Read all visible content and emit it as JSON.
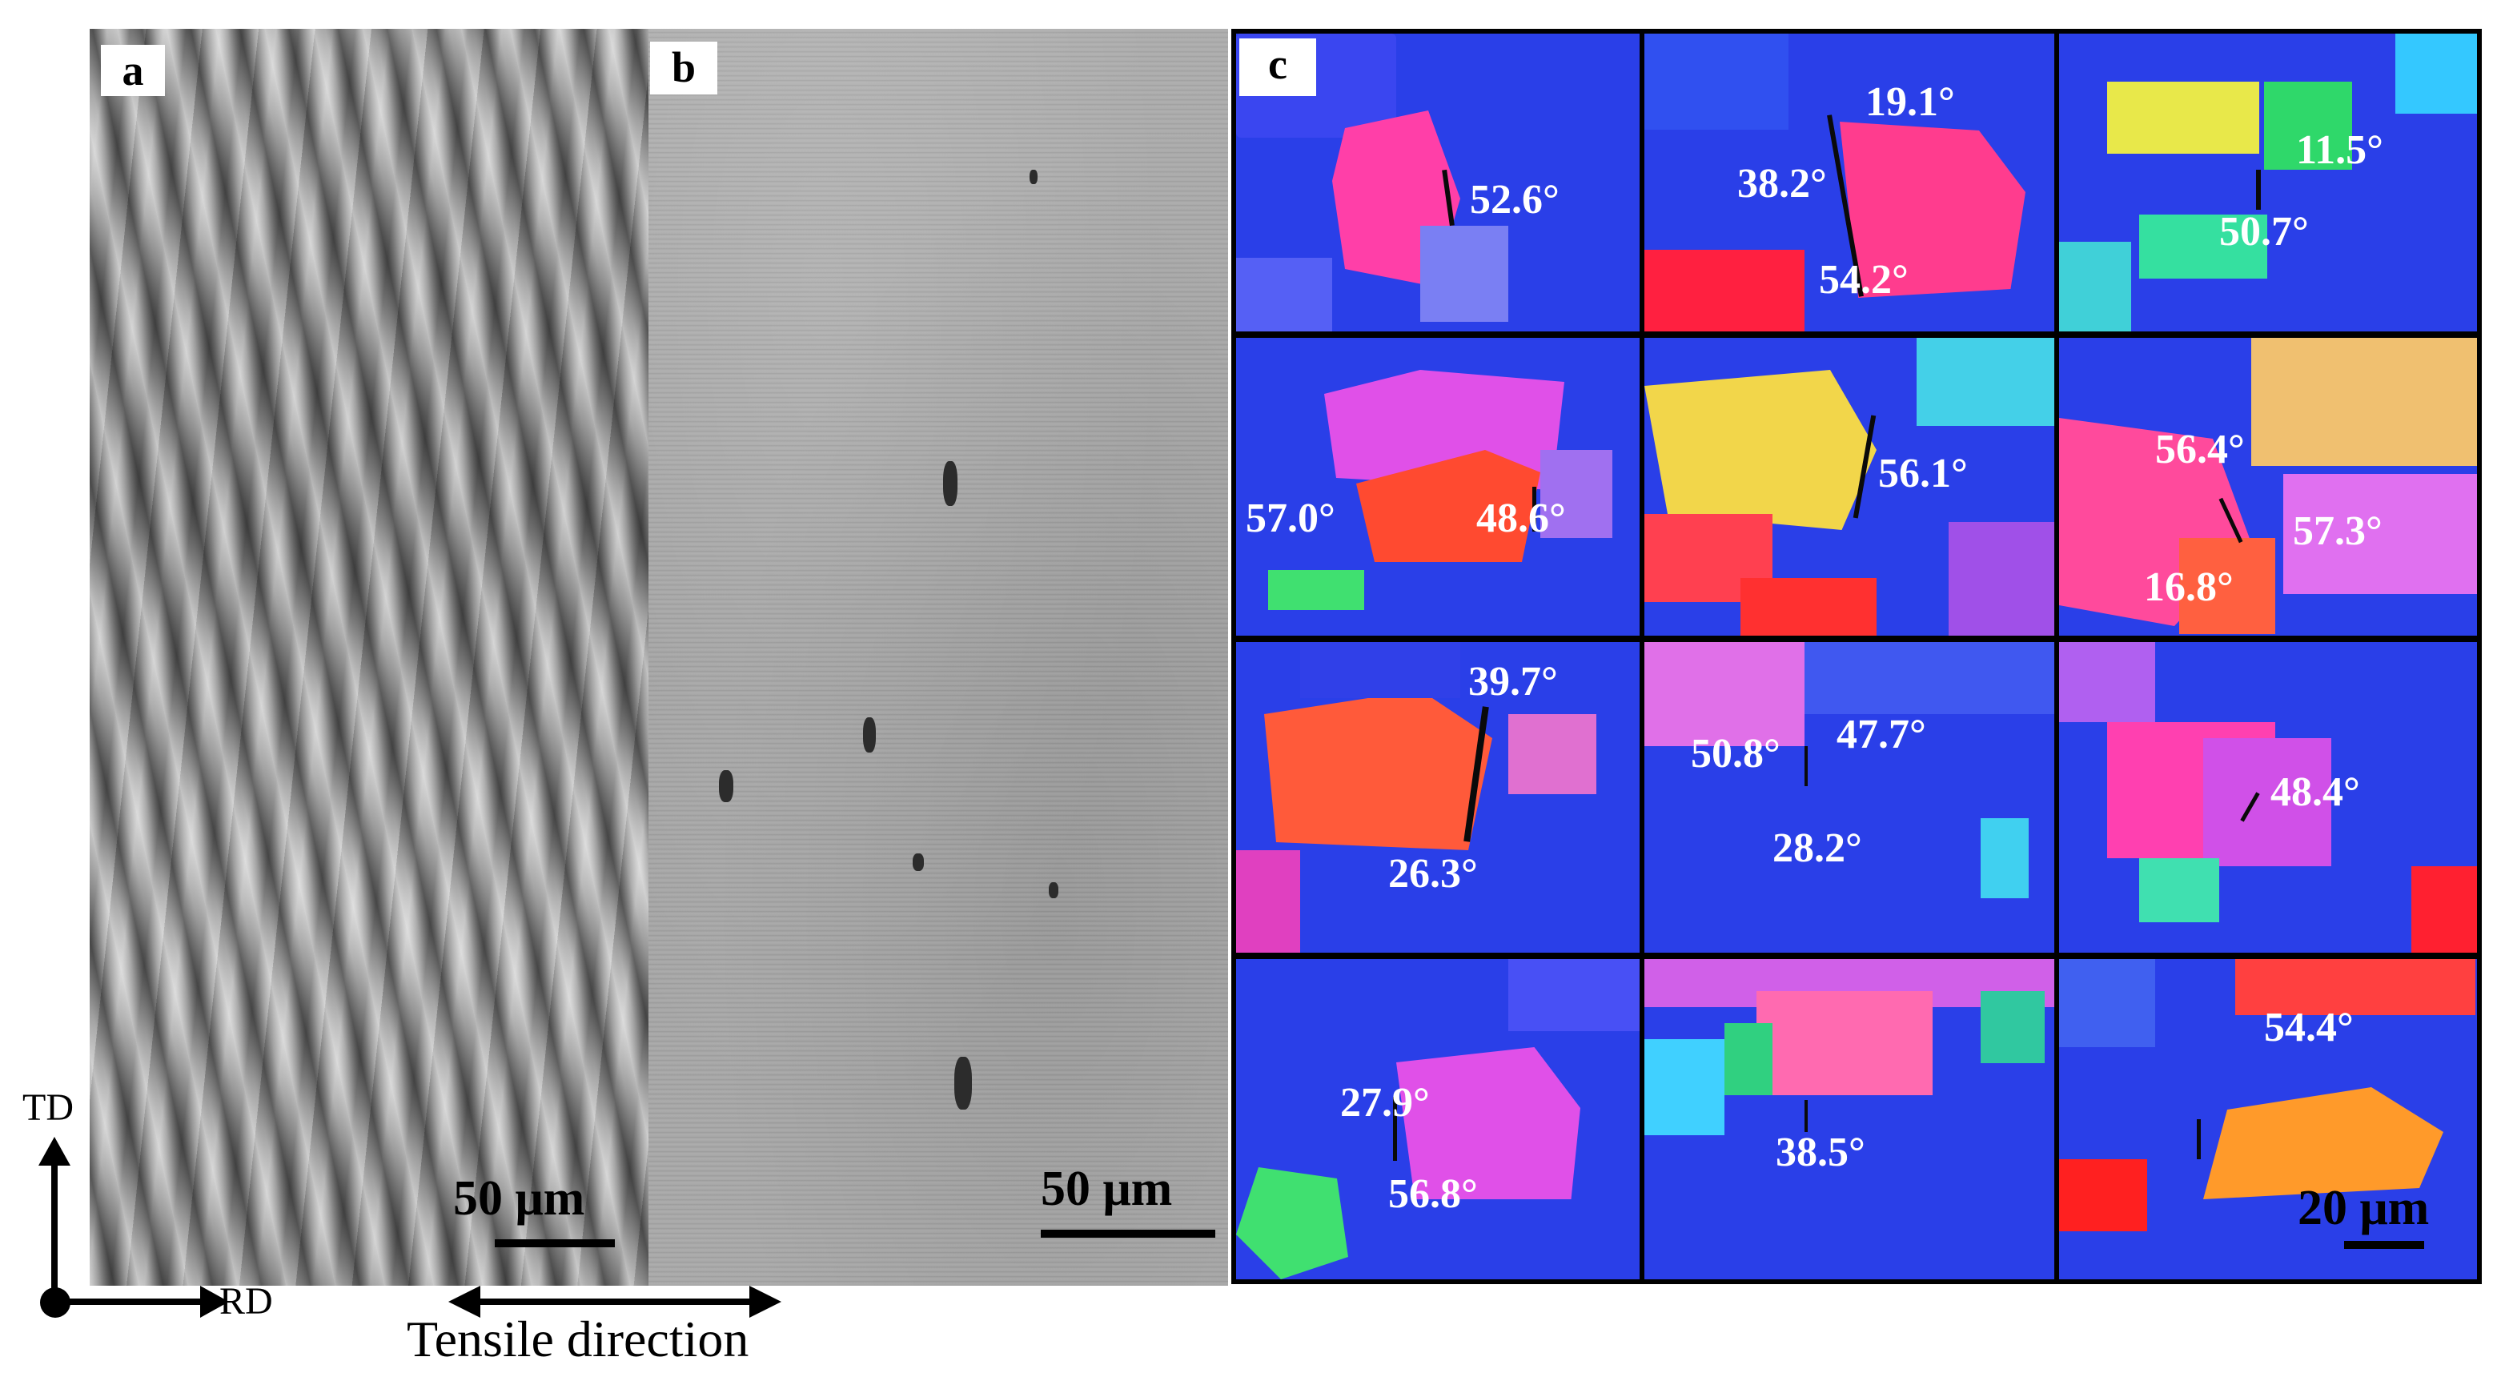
{
  "figure": {
    "panel_letters": {
      "a": "a",
      "b": "b",
      "c": "c"
    },
    "scale_bars": {
      "a": "50 μm",
      "b": "50 μm",
      "c": "20 μm"
    },
    "axes": {
      "vertical": "TD",
      "horizontal": "RD"
    },
    "tensile_direction": "Tensile direction",
    "misorientation_tiles": [
      {
        "labels": [
          "52.6°"
        ]
      },
      {
        "labels": [
          "19.1°",
          "38.2°",
          "54.2°"
        ]
      },
      {
        "labels": [
          "11.5°",
          "50.7°"
        ]
      },
      {
        "labels": [
          "57.0°",
          "48.6°"
        ]
      },
      {
        "labels": [
          "56.1°"
        ]
      },
      {
        "labels": [
          "56.4°",
          "57.3°",
          "16.8°"
        ]
      },
      {
        "labels": [
          "39.7°",
          "26.3°"
        ]
      },
      {
        "labels": [
          "50.8°",
          "47.7°",
          "28.2°"
        ]
      },
      {
        "labels": [
          "48.4°"
        ]
      },
      {
        "labels": [
          "27.9°",
          "56.8°"
        ]
      },
      {
        "labels": [
          "38.5°"
        ]
      },
      {
        "labels": [
          "54.4°"
        ]
      }
    ],
    "colors": {
      "ebsd_base": "#2a3fe8",
      "text_on_map": "#ffffff",
      "border": "#000000"
    }
  }
}
